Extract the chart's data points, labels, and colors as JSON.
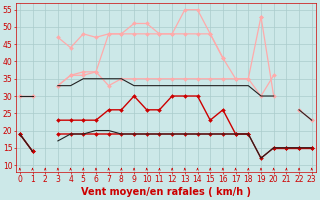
{
  "background_color": "#cce8e8",
  "grid_color": "#aacccc",
  "xlabel": "Vent moyen/en rafales ( km/h )",
  "xlabel_color": "#cc0000",
  "xlabel_fontsize": 7,
  "yticks": [
    10,
    15,
    20,
    25,
    30,
    35,
    40,
    45,
    50,
    55
  ],
  "xticks": [
    0,
    1,
    2,
    3,
    4,
    5,
    6,
    7,
    8,
    9,
    10,
    11,
    12,
    13,
    14,
    15,
    16,
    17,
    18,
    19,
    20,
    21,
    22,
    23
  ],
  "ylim": [
    8,
    57
  ],
  "xlim": [
    -0.3,
    23.3
  ],
  "series": [
    {
      "y": [
        null,
        null,
        null,
        47,
        44,
        48,
        47,
        48,
        48,
        51,
        51,
        48,
        48,
        55,
        55,
        48,
        41,
        null,
        null,
        53,
        null,
        null,
        null,
        null
      ],
      "color": "#ffaaaa",
      "lw": 0.9,
      "marker": "D",
      "ms": 2.0
    },
    {
      "y": [
        30,
        30,
        null,
        33,
        36,
        37,
        37,
        48,
        48,
        48,
        48,
        48,
        48,
        48,
        48,
        48,
        41,
        35,
        35,
        53,
        30,
        null,
        26,
        23
      ],
      "color": "#ffaaaa",
      "lw": 0.9,
      "marker": "D",
      "ms": 2.0
    },
    {
      "y": [
        30,
        30,
        null,
        33,
        36,
        36,
        37,
        33,
        35,
        35,
        35,
        35,
        35,
        35,
        35,
        35,
        35,
        35,
        35,
        30,
        36,
        null,
        26,
        23
      ],
      "color": "#ffaaaa",
      "lw": 0.9,
      "marker": "D",
      "ms": 2.0
    },
    {
      "y": [
        19,
        14,
        null,
        23,
        23,
        23,
        23,
        26,
        26,
        30,
        26,
        26,
        30,
        30,
        30,
        23,
        26,
        19,
        19,
        null,
        15,
        15,
        15,
        15
      ],
      "color": "#cc0000",
      "lw": 1.0,
      "marker": "D",
      "ms": 2.0
    },
    {
      "y": [
        19,
        14,
        null,
        19,
        19,
        19,
        19,
        19,
        19,
        19,
        19,
        19,
        19,
        19,
        19,
        19,
        19,
        19,
        19,
        12,
        15,
        15,
        15,
        15
      ],
      "color": "#cc0000",
      "lw": 1.0,
      "marker": "D",
      "ms": 2.0
    },
    {
      "y": [
        30,
        30,
        null,
        33,
        33,
        35,
        35,
        35,
        35,
        33,
        33,
        33,
        33,
        33,
        33,
        33,
        33,
        33,
        33,
        30,
        30,
        null,
        26,
        23
      ],
      "color": "#222222",
      "lw": 0.8,
      "marker": null,
      "ms": 0
    },
    {
      "y": [
        19,
        14,
        null,
        17,
        19,
        19,
        20,
        20,
        19,
        19,
        19,
        19,
        19,
        19,
        19,
        19,
        19,
        19,
        19,
        12,
        15,
        15,
        15,
        15
      ],
      "color": "#222222",
      "lw": 0.8,
      "marker": null,
      "ms": 0
    }
  ],
  "arrow_color": "#cc0000",
  "tick_color": "#cc0000",
  "tick_fontsize": 5.5,
  "spine_color": "#cc0000"
}
